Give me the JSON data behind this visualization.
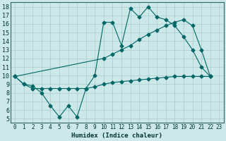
{
  "xlabel": "Humidex (Indice chaleur)",
  "bg_color": "#cce8e8",
  "grid_color": "#a8cccc",
  "line_color": "#006666",
  "xlim": [
    -0.5,
    23.5
  ],
  "ylim": [
    4.5,
    18.5
  ],
  "xticks": [
    0,
    1,
    2,
    3,
    4,
    5,
    6,
    7,
    8,
    9,
    10,
    11,
    12,
    13,
    14,
    15,
    16,
    17,
    18,
    19,
    20,
    21,
    22,
    23
  ],
  "yticks": [
    5,
    6,
    7,
    8,
    9,
    10,
    11,
    12,
    13,
    14,
    15,
    16,
    17,
    18
  ],
  "line1_x": [
    0,
    1,
    2,
    3,
    4,
    5,
    6,
    7,
    8,
    9,
    10,
    11,
    12,
    13,
    14,
    15,
    16,
    17,
    18,
    19,
    20,
    21,
    22
  ],
  "line1_y": [
    9.9,
    9.0,
    8.8,
    8.0,
    6.5,
    5.2,
    6.5,
    5.2,
    8.5,
    10.0,
    16.2,
    16.2,
    13.5,
    17.8,
    16.8,
    18.0,
    16.8,
    16.5,
    15.8,
    14.5,
    13.0,
    11.0,
    9.9
  ],
  "line2_x": [
    0,
    10,
    11,
    12,
    13,
    14,
    15,
    16,
    17,
    18,
    19,
    20,
    21,
    22
  ],
  "line2_y": [
    9.9,
    12.0,
    12.5,
    13.0,
    13.5,
    14.2,
    14.8,
    15.3,
    15.8,
    16.2,
    16.5,
    15.8,
    13.0,
    9.9
  ],
  "line3_x": [
    0,
    1,
    2,
    3,
    4,
    5,
    6,
    7,
    8,
    9,
    10,
    11,
    12,
    13,
    14,
    15,
    16,
    17,
    18,
    19,
    20,
    21,
    22
  ],
  "line3_y": [
    9.9,
    9.0,
    8.5,
    8.5,
    8.5,
    8.5,
    8.5,
    8.5,
    8.5,
    8.7,
    9.0,
    9.2,
    9.3,
    9.4,
    9.5,
    9.6,
    9.7,
    9.8,
    9.9,
    9.9,
    9.9,
    9.9,
    9.9
  ]
}
